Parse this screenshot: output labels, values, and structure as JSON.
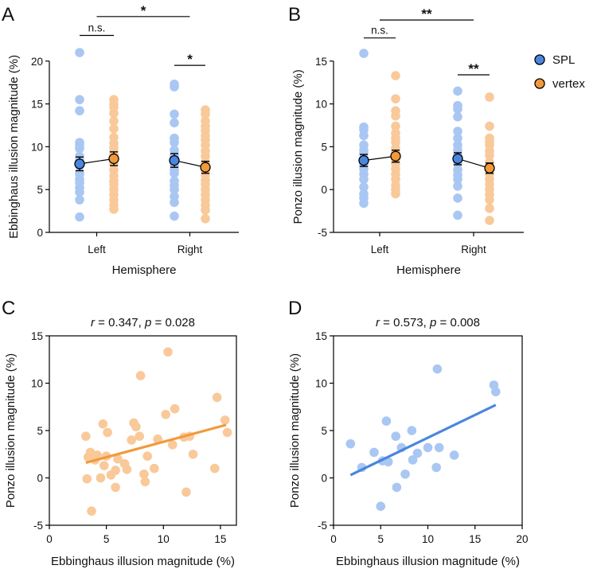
{
  "colors": {
    "spl": "#4a86e0",
    "spl_light": "#a9c7f2",
    "vertex": "#f29a3a",
    "vertex_light": "#f9c99a",
    "axis": "#000000"
  },
  "legend": {
    "items": [
      {
        "label": "SPL",
        "color": "#4a86e0"
      },
      {
        "label": "vertex",
        "color": "#f29a3a"
      }
    ]
  },
  "chart_data": [
    {
      "panel": "A",
      "type": "scatter",
      "ylabel": "Ebbinghaus illusion magnitude (%)",
      "xlabel": "Hemisphere",
      "categories": [
        "Left",
        "Right"
      ],
      "ylim": [
        0,
        21
      ],
      "yticks": [
        0,
        5,
        10,
        15,
        20
      ],
      "series": [
        {
          "name": "SPL",
          "means": [
            8.0,
            8.4
          ],
          "errors": [
            0.8,
            0.8
          ],
          "points": [
            [
              1.8,
              3.8,
              4.7,
              5.2,
              5.8,
              6.2,
              6.8,
              7.0,
              7.8,
              8.2,
              8.5,
              8.9,
              9.8,
              10.2,
              10.5,
              14.2,
              15.5,
              21.0
            ],
            [
              1.9,
              3.5,
              4.2,
              5.0,
              5.5,
              6.0,
              6.9,
              7.3,
              7.8,
              8.2,
              8.7,
              9.0,
              9.6,
              10.5,
              11.0,
              12.8,
              13.8,
              17.0,
              17.3
            ]
          ]
        },
        {
          "name": "vertex",
          "means": [
            8.6,
            7.6
          ],
          "errors": [
            0.8,
            0.7
          ],
          "points": [
            [
              2.7,
              3.2,
              3.8,
              4.4,
              5.0,
              5.6,
              6.0,
              6.6,
              7.3,
              8.0,
              8.6,
              9.1,
              9.5,
              9.9,
              10.4,
              11.1,
              12.1,
              13.0,
              13.9,
              14.6,
              15.0,
              15.5
            ],
            [
              1.6,
              2.6,
              3.2,
              3.8,
              4.4,
              5.0,
              5.6,
              6.1,
              6.7,
              7.1,
              7.6,
              8.2,
              8.9,
              9.5,
              10.2,
              10.8,
              11.3,
              11.9,
              12.4,
              13.0,
              13.8,
              14.3
            ]
          ]
        }
      ],
      "annotations": [
        {
          "label": "n.s.",
          "from": "Left-SPL",
          "to": "Left-vertex",
          "y": 23.0
        },
        {
          "label": "*",
          "from": "Left",
          "to": "Right",
          "y": 25.2
        },
        {
          "label": "*",
          "from": "Right-SPL",
          "to": "Right-vertex",
          "y": 19.5
        }
      ]
    },
    {
      "panel": "B",
      "type": "scatter",
      "ylabel": "Ponzo illusion magnitude (%)",
      "xlabel": "Hemisphere",
      "categories": [
        "Left",
        "Right"
      ],
      "ylim": [
        -5,
        16
      ],
      "yticks": [
        -5,
        0,
        5,
        10,
        15
      ],
      "series": [
        {
          "name": "SPL",
          "means": [
            3.4,
            3.6
          ],
          "errors": [
            0.7,
            0.7
          ],
          "points": [
            [
              -1.6,
              -1.0,
              -0.5,
              0.3,
              1.2,
              1.8,
              2.4,
              2.8,
              3.1,
              3.6,
              4.2,
              4.6,
              5.2,
              6.3,
              7.0,
              7.3,
              15.9
            ],
            [
              -3.0,
              -1.0,
              0.4,
              1.2,
              1.7,
              2.3,
              3.0,
              3.4,
              4.0,
              4.6,
              5.2,
              6.0,
              6.8,
              8.5,
              9.4,
              9.8,
              11.5
            ]
          ]
        },
        {
          "name": "vertex",
          "means": [
            3.9,
            2.5
          ],
          "errors": [
            0.7,
            0.6
          ],
          "points": [
            [
              -0.5,
              0.0,
              0.5,
              1.2,
              1.8,
              2.4,
              3.0,
              3.5,
              4.0,
              4.4,
              4.8,
              5.5,
              6.0,
              6.6,
              7.4,
              8.6,
              9.2,
              10.6,
              13.3
            ],
            [
              -3.6,
              -2.2,
              -1.2,
              -0.6,
              0.0,
              0.6,
              1.2,
              1.8,
              2.2,
              2.8,
              3.2,
              4.0,
              4.5,
              5.2,
              5.6,
              6.0,
              7.4,
              10.8
            ]
          ]
        }
      ],
      "annotations": [
        {
          "label": "n.s.",
          "from": "Left-SPL",
          "to": "Left-vertex",
          "y": 17.7
        },
        {
          "label": "**",
          "from": "Left",
          "to": "Right",
          "y": 19.8
        },
        {
          "label": "**",
          "from": "Right-SPL",
          "to": "Right-vertex",
          "y": 13.4
        }
      ]
    },
    {
      "panel": "C",
      "type": "scatter",
      "title_r": "0.347",
      "title_p": "0.028",
      "xlabel": "Ebbinghaus illusion magnitude (%)",
      "ylabel": "Ponzo illusion magnitude (%)",
      "xlim": [
        0,
        16.4
      ],
      "ylim": [
        -5,
        15
      ],
      "xticks": [
        0,
        5,
        10,
        15
      ],
      "yticks": [
        -5,
        0,
        5,
        10,
        15
      ],
      "color": "vertex",
      "points": [
        [
          3.2,
          4.4
        ],
        [
          3.3,
          -0.1
        ],
        [
          3.4,
          2.2
        ],
        [
          3.6,
          2.7
        ],
        [
          3.7,
          -3.5
        ],
        [
          4.0,
          1.9
        ],
        [
          4.2,
          2.4
        ],
        [
          4.5,
          0.0
        ],
        [
          4.7,
          5.7
        ],
        [
          4.8,
          1.3
        ],
        [
          5.0,
          2.3
        ],
        [
          5.1,
          4.8
        ],
        [
          5.4,
          0.3
        ],
        [
          5.8,
          -1.0
        ],
        [
          5.8,
          0.8
        ],
        [
          6.0,
          2.0
        ],
        [
          6.6,
          1.5
        ],
        [
          6.8,
          0.9
        ],
        [
          7.2,
          4.0
        ],
        [
          7.4,
          5.8
        ],
        [
          7.6,
          5.4
        ],
        [
          7.9,
          4.4
        ],
        [
          8.0,
          10.8
        ],
        [
          8.3,
          0.4
        ],
        [
          8.4,
          -0.4
        ],
        [
          8.6,
          2.3
        ],
        [
          9.2,
          1.0
        ],
        [
          9.5,
          4.1
        ],
        [
          10.2,
          6.7
        ],
        [
          10.4,
          13.3
        ],
        [
          10.8,
          3.5
        ],
        [
          11.0,
          7.3
        ],
        [
          11.8,
          4.3
        ],
        [
          12.0,
          -1.5
        ],
        [
          12.3,
          4.4
        ],
        [
          12.6,
          2.5
        ],
        [
          14.5,
          1.0
        ],
        [
          14.7,
          8.5
        ],
        [
          15.4,
          6.1
        ],
        [
          15.6,
          4.8
        ]
      ],
      "fit": {
        "x": [
          3.2,
          15.5
        ],
        "y": [
          1.6,
          5.6
        ]
      }
    },
    {
      "panel": "D",
      "type": "scatter",
      "title_r": "0.573",
      "title_p": "0.008",
      "xlabel": "Ebbinghaus illusion magnitude (%)",
      "ylabel": "Ponzo illusion magnitude (%)",
      "xlim": [
        0,
        20
      ],
      "ylim": [
        -5,
        15
      ],
      "xticks": [
        0,
        5,
        10,
        15,
        20
      ],
      "yticks": [
        -5,
        0,
        5,
        10,
        15
      ],
      "color": "spl",
      "points": [
        [
          1.8,
          3.6
        ],
        [
          3.0,
          1.1
        ],
        [
          4.3,
          2.7
        ],
        [
          5.0,
          -3.0
        ],
        [
          5.2,
          1.8
        ],
        [
          5.6,
          6.0
        ],
        [
          5.8,
          1.7
        ],
        [
          6.6,
          4.4
        ],
        [
          6.7,
          -1.0
        ],
        [
          7.2,
          3.2
        ],
        [
          7.6,
          0.4
        ],
        [
          8.3,
          5.0
        ],
        [
          8.4,
          1.9
        ],
        [
          8.9,
          2.6
        ],
        [
          10.0,
          3.2
        ],
        [
          10.9,
          1.1
        ],
        [
          11.0,
          11.5
        ],
        [
          11.2,
          3.2
        ],
        [
          12.8,
          2.4
        ],
        [
          17.0,
          9.8
        ],
        [
          17.2,
          9.1
        ]
      ],
      "fit": {
        "x": [
          1.8,
          17.2
        ],
        "y": [
          0.3,
          7.7
        ]
      }
    }
  ]
}
